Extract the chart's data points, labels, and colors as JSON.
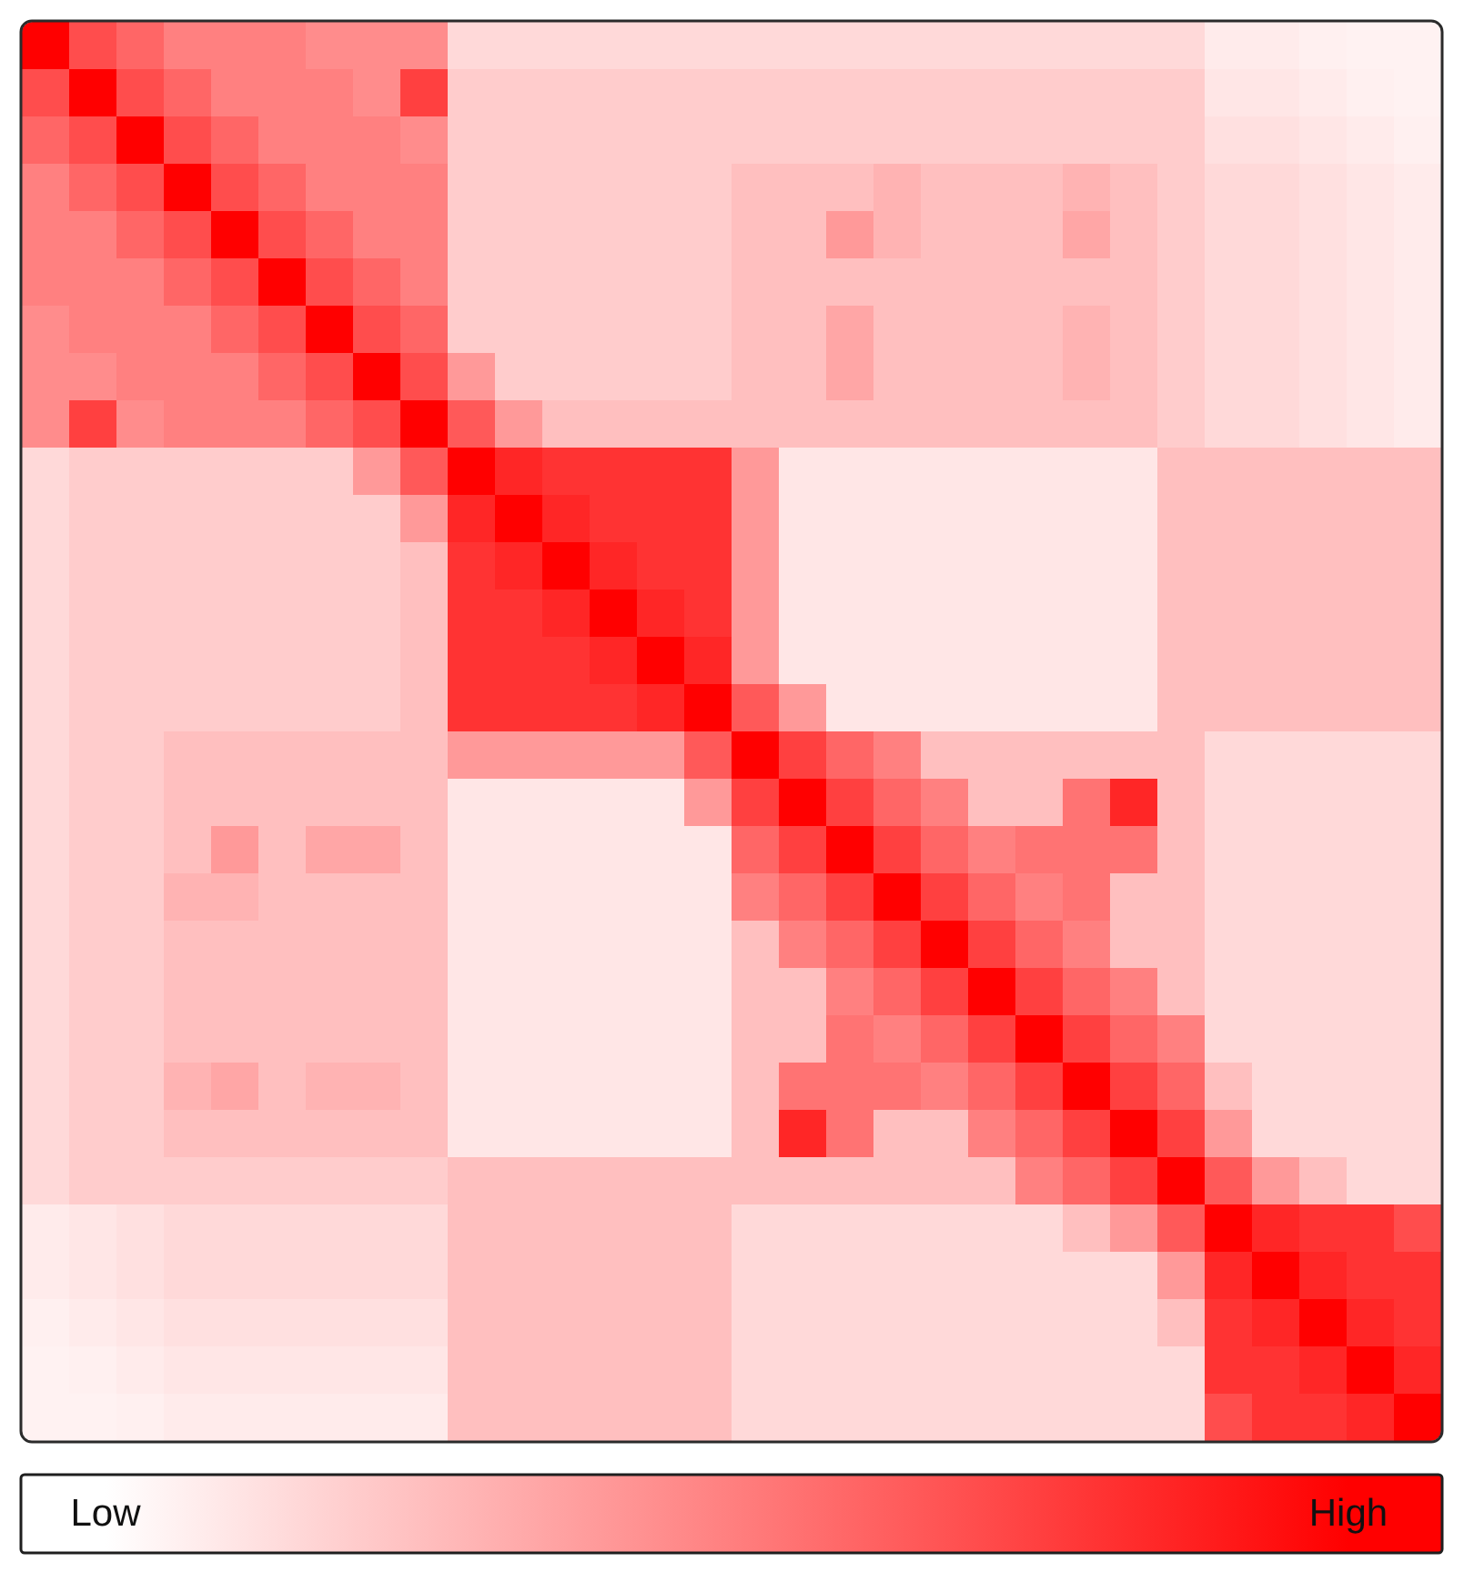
{
  "chart_data": {
    "type": "heatmap",
    "color": "#ff0000",
    "clim": [
      0,
      1
    ],
    "cticks": [
      {
        "value": 0,
        "label": "Low"
      },
      {
        "value": 1,
        "label": "High"
      }
    ],
    "categories": [
      null,
      null,
      null,
      null,
      null,
      null,
      null,
      null,
      null,
      null,
      null,
      null,
      null,
      null,
      null,
      null,
      null,
      null,
      null,
      null,
      null,
      null,
      null,
      null,
      null,
      null,
      null,
      null,
      null,
      null
    ],
    "y_categories": [
      null,
      null,
      null,
      null,
      null,
      null,
      null,
      null,
      null,
      null,
      null,
      null,
      null,
      null,
      null,
      null,
      null,
      null,
      null,
      null,
      null,
      null,
      null,
      null,
      null,
      null,
      null,
      null,
      null,
      null
    ],
    "cells": [
      [
        1,
        0.7,
        0.6,
        0.5,
        0.5,
        0.5,
        0.45,
        0.45,
        0.45,
        0.15,
        0.15,
        0.15,
        0.15,
        0.15,
        0.15,
        0.15,
        0.15,
        0.15,
        0.15,
        0.15,
        0.15,
        0.15,
        0.15,
        0.15,
        0.15,
        0.08,
        0.08,
        0.06,
        0.05,
        0.05
      ],
      [
        0.7,
        1,
        0.7,
        0.6,
        0.5,
        0.5,
        0.5,
        0.45,
        0.75,
        0.2,
        0.2,
        0.2,
        0.2,
        0.2,
        0.2,
        0.2,
        0.2,
        0.2,
        0.2,
        0.2,
        0.2,
        0.2,
        0.2,
        0.2,
        0.2,
        0.1,
        0.1,
        0.08,
        0.06,
        0.05
      ],
      [
        0.6,
        0.7,
        1,
        0.7,
        0.6,
        0.5,
        0.5,
        0.5,
        0.45,
        0.2,
        0.2,
        0.2,
        0.2,
        0.2,
        0.2,
        0.2,
        0.2,
        0.2,
        0.2,
        0.2,
        0.2,
        0.2,
        0.2,
        0.2,
        0.2,
        0.12,
        0.12,
        0.1,
        0.08,
        0.06
      ],
      [
        0.5,
        0.6,
        0.7,
        1,
        0.7,
        0.6,
        0.5,
        0.5,
        0.5,
        0.2,
        0.2,
        0.2,
        0.2,
        0.2,
        0.2,
        0.25,
        0.25,
        0.25,
        0.3,
        0.25,
        0.25,
        0.25,
        0.3,
        0.25,
        0.2,
        0.15,
        0.15,
        0.12,
        0.1,
        0.08
      ],
      [
        0.5,
        0.5,
        0.6,
        0.7,
        1,
        0.7,
        0.6,
        0.5,
        0.5,
        0.2,
        0.2,
        0.2,
        0.2,
        0.2,
        0.2,
        0.25,
        0.25,
        0.4,
        0.3,
        0.25,
        0.25,
        0.25,
        0.35,
        0.25,
        0.2,
        0.15,
        0.15,
        0.12,
        0.1,
        0.08
      ],
      [
        0.5,
        0.5,
        0.5,
        0.6,
        0.7,
        1,
        0.7,
        0.6,
        0.5,
        0.2,
        0.2,
        0.2,
        0.2,
        0.2,
        0.2,
        0.25,
        0.25,
        0.25,
        0.25,
        0.25,
        0.25,
        0.25,
        0.25,
        0.25,
        0.2,
        0.15,
        0.15,
        0.12,
        0.1,
        0.08
      ],
      [
        0.45,
        0.5,
        0.5,
        0.5,
        0.6,
        0.7,
        1,
        0.7,
        0.6,
        0.2,
        0.2,
        0.2,
        0.2,
        0.2,
        0.2,
        0.25,
        0.25,
        0.35,
        0.25,
        0.25,
        0.25,
        0.25,
        0.3,
        0.25,
        0.2,
        0.15,
        0.15,
        0.12,
        0.1,
        0.08
      ],
      [
        0.45,
        0.45,
        0.5,
        0.5,
        0.5,
        0.6,
        0.7,
        1,
        0.7,
        0.4,
        0.2,
        0.2,
        0.2,
        0.2,
        0.2,
        0.25,
        0.25,
        0.35,
        0.25,
        0.25,
        0.25,
        0.25,
        0.3,
        0.25,
        0.2,
        0.15,
        0.15,
        0.12,
        0.1,
        0.08
      ],
      [
        0.45,
        0.75,
        0.45,
        0.5,
        0.5,
        0.5,
        0.6,
        0.7,
        1,
        0.65,
        0.4,
        0.25,
        0.25,
        0.25,
        0.25,
        0.25,
        0.25,
        0.25,
        0.25,
        0.25,
        0.25,
        0.25,
        0.25,
        0.25,
        0.2,
        0.15,
        0.15,
        0.12,
        0.1,
        0.08
      ],
      [
        0.15,
        0.2,
        0.2,
        0.2,
        0.2,
        0.2,
        0.2,
        0.4,
        0.65,
        1,
        0.85,
        0.8,
        0.8,
        0.8,
        0.8,
        0.4,
        0.1,
        0.1,
        0.1,
        0.1,
        0.1,
        0.1,
        0.1,
        0.1,
        0.25,
        0.25,
        0.25,
        0.25,
        0.25,
        0.25
      ],
      [
        0.15,
        0.2,
        0.2,
        0.2,
        0.2,
        0.2,
        0.2,
        0.2,
        0.4,
        0.85,
        1,
        0.85,
        0.8,
        0.8,
        0.8,
        0.4,
        0.1,
        0.1,
        0.1,
        0.1,
        0.1,
        0.1,
        0.1,
        0.1,
        0.25,
        0.25,
        0.25,
        0.25,
        0.25,
        0.25
      ],
      [
        0.15,
        0.2,
        0.2,
        0.2,
        0.2,
        0.2,
        0.2,
        0.2,
        0.25,
        0.8,
        0.85,
        1,
        0.85,
        0.8,
        0.8,
        0.4,
        0.1,
        0.1,
        0.1,
        0.1,
        0.1,
        0.1,
        0.1,
        0.1,
        0.25,
        0.25,
        0.25,
        0.25,
        0.25,
        0.25
      ],
      [
        0.15,
        0.2,
        0.2,
        0.2,
        0.2,
        0.2,
        0.2,
        0.2,
        0.25,
        0.8,
        0.8,
        0.85,
        1,
        0.85,
        0.8,
        0.4,
        0.1,
        0.1,
        0.1,
        0.1,
        0.1,
        0.1,
        0.1,
        0.1,
        0.25,
        0.25,
        0.25,
        0.25,
        0.25,
        0.25
      ],
      [
        0.15,
        0.2,
        0.2,
        0.2,
        0.2,
        0.2,
        0.2,
        0.2,
        0.25,
        0.8,
        0.8,
        0.8,
        0.85,
        1,
        0.85,
        0.4,
        0.1,
        0.1,
        0.1,
        0.1,
        0.1,
        0.1,
        0.1,
        0.1,
        0.25,
        0.25,
        0.25,
        0.25,
        0.25,
        0.25
      ],
      [
        0.15,
        0.2,
        0.2,
        0.2,
        0.2,
        0.2,
        0.2,
        0.2,
        0.25,
        0.8,
        0.8,
        0.8,
        0.8,
        0.85,
        1,
        0.65,
        0.4,
        0.1,
        0.1,
        0.1,
        0.1,
        0.1,
        0.1,
        0.1,
        0.25,
        0.25,
        0.25,
        0.25,
        0.25,
        0.25
      ],
      [
        0.15,
        0.2,
        0.2,
        0.25,
        0.25,
        0.25,
        0.25,
        0.25,
        0.25,
        0.4,
        0.4,
        0.4,
        0.4,
        0.4,
        0.65,
        1,
        0.75,
        0.6,
        0.5,
        0.25,
        0.25,
        0.25,
        0.25,
        0.25,
        0.25,
        0.15,
        0.15,
        0.15,
        0.15,
        0.15
      ],
      [
        0.15,
        0.2,
        0.2,
        0.25,
        0.25,
        0.25,
        0.25,
        0.25,
        0.25,
        0.1,
        0.1,
        0.1,
        0.1,
        0.1,
        0.4,
        0.75,
        1,
        0.75,
        0.6,
        0.5,
        0.25,
        0.25,
        0.55,
        0.85,
        0.25,
        0.15,
        0.15,
        0.15,
        0.15,
        0.15
      ],
      [
        0.15,
        0.2,
        0.2,
        0.25,
        0.4,
        0.25,
        0.35,
        0.35,
        0.25,
        0.1,
        0.1,
        0.1,
        0.1,
        0.1,
        0.1,
        0.6,
        0.75,
        1,
        0.75,
        0.6,
        0.5,
        0.55,
        0.55,
        0.55,
        0.25,
        0.15,
        0.15,
        0.15,
        0.15,
        0.15
      ],
      [
        0.15,
        0.2,
        0.2,
        0.3,
        0.3,
        0.25,
        0.25,
        0.25,
        0.25,
        0.1,
        0.1,
        0.1,
        0.1,
        0.1,
        0.1,
        0.5,
        0.6,
        0.75,
        1,
        0.75,
        0.6,
        0.5,
        0.55,
        0.25,
        0.25,
        0.15,
        0.15,
        0.15,
        0.15,
        0.15
      ],
      [
        0.15,
        0.2,
        0.2,
        0.25,
        0.25,
        0.25,
        0.25,
        0.25,
        0.25,
        0.1,
        0.1,
        0.1,
        0.1,
        0.1,
        0.1,
        0.25,
        0.5,
        0.6,
        0.75,
        1,
        0.75,
        0.6,
        0.5,
        0.25,
        0.25,
        0.15,
        0.15,
        0.15,
        0.15,
        0.15
      ],
      [
        0.15,
        0.2,
        0.2,
        0.25,
        0.25,
        0.25,
        0.25,
        0.25,
        0.25,
        0.1,
        0.1,
        0.1,
        0.1,
        0.1,
        0.1,
        0.25,
        0.25,
        0.5,
        0.6,
        0.75,
        1,
        0.75,
        0.6,
        0.5,
        0.25,
        0.15,
        0.15,
        0.15,
        0.15,
        0.15
      ],
      [
        0.15,
        0.2,
        0.2,
        0.25,
        0.25,
        0.25,
        0.25,
        0.25,
        0.25,
        0.1,
        0.1,
        0.1,
        0.1,
        0.1,
        0.1,
        0.25,
        0.25,
        0.55,
        0.5,
        0.6,
        0.75,
        1,
        0.75,
        0.6,
        0.5,
        0.15,
        0.15,
        0.15,
        0.15,
        0.15
      ],
      [
        0.15,
        0.2,
        0.2,
        0.3,
        0.35,
        0.25,
        0.3,
        0.3,
        0.25,
        0.1,
        0.1,
        0.1,
        0.1,
        0.1,
        0.1,
        0.25,
        0.55,
        0.55,
        0.55,
        0.5,
        0.6,
        0.75,
        1,
        0.75,
        0.6,
        0.25,
        0.15,
        0.15,
        0.15,
        0.15
      ],
      [
        0.15,
        0.2,
        0.2,
        0.25,
        0.25,
        0.25,
        0.25,
        0.25,
        0.25,
        0.1,
        0.1,
        0.1,
        0.1,
        0.1,
        0.1,
        0.25,
        0.85,
        0.55,
        0.25,
        0.25,
        0.5,
        0.6,
        0.75,
        1,
        0.75,
        0.4,
        0.15,
        0.15,
        0.15,
        0.15
      ],
      [
        0.15,
        0.2,
        0.2,
        0.2,
        0.2,
        0.2,
        0.2,
        0.2,
        0.2,
        0.25,
        0.25,
        0.25,
        0.25,
        0.25,
        0.25,
        0.25,
        0.25,
        0.25,
        0.25,
        0.25,
        0.25,
        0.5,
        0.6,
        0.75,
        1,
        0.65,
        0.4,
        0.25,
        0.15,
        0.15
      ],
      [
        0.08,
        0.1,
        0.12,
        0.15,
        0.15,
        0.15,
        0.15,
        0.15,
        0.15,
        0.25,
        0.25,
        0.25,
        0.25,
        0.25,
        0.25,
        0.15,
        0.15,
        0.15,
        0.15,
        0.15,
        0.15,
        0.15,
        0.25,
        0.4,
        0.65,
        1,
        0.85,
        0.8,
        0.8,
        0.7
      ],
      [
        0.08,
        0.1,
        0.12,
        0.15,
        0.15,
        0.15,
        0.15,
        0.15,
        0.15,
        0.25,
        0.25,
        0.25,
        0.25,
        0.25,
        0.25,
        0.15,
        0.15,
        0.15,
        0.15,
        0.15,
        0.15,
        0.15,
        0.15,
        0.15,
        0.4,
        0.85,
        1,
        0.85,
        0.8,
        0.8
      ],
      [
        0.06,
        0.08,
        0.1,
        0.12,
        0.12,
        0.12,
        0.12,
        0.12,
        0.12,
        0.25,
        0.25,
        0.25,
        0.25,
        0.25,
        0.25,
        0.15,
        0.15,
        0.15,
        0.15,
        0.15,
        0.15,
        0.15,
        0.15,
        0.15,
        0.25,
        0.8,
        0.85,
        1,
        0.85,
        0.8
      ],
      [
        0.05,
        0.06,
        0.08,
        0.1,
        0.1,
        0.1,
        0.1,
        0.1,
        0.1,
        0.25,
        0.25,
        0.25,
        0.25,
        0.25,
        0.25,
        0.15,
        0.15,
        0.15,
        0.15,
        0.15,
        0.15,
        0.15,
        0.15,
        0.15,
        0.15,
        0.8,
        0.8,
        0.85,
        1,
        0.85
      ],
      [
        0.05,
        0.05,
        0.06,
        0.08,
        0.08,
        0.08,
        0.08,
        0.08,
        0.08,
        0.25,
        0.25,
        0.25,
        0.25,
        0.25,
        0.25,
        0.15,
        0.15,
        0.15,
        0.15,
        0.15,
        0.15,
        0.15,
        0.15,
        0.15,
        0.15,
        0.7,
        0.8,
        0.8,
        0.85,
        1
      ]
    ]
  }
}
